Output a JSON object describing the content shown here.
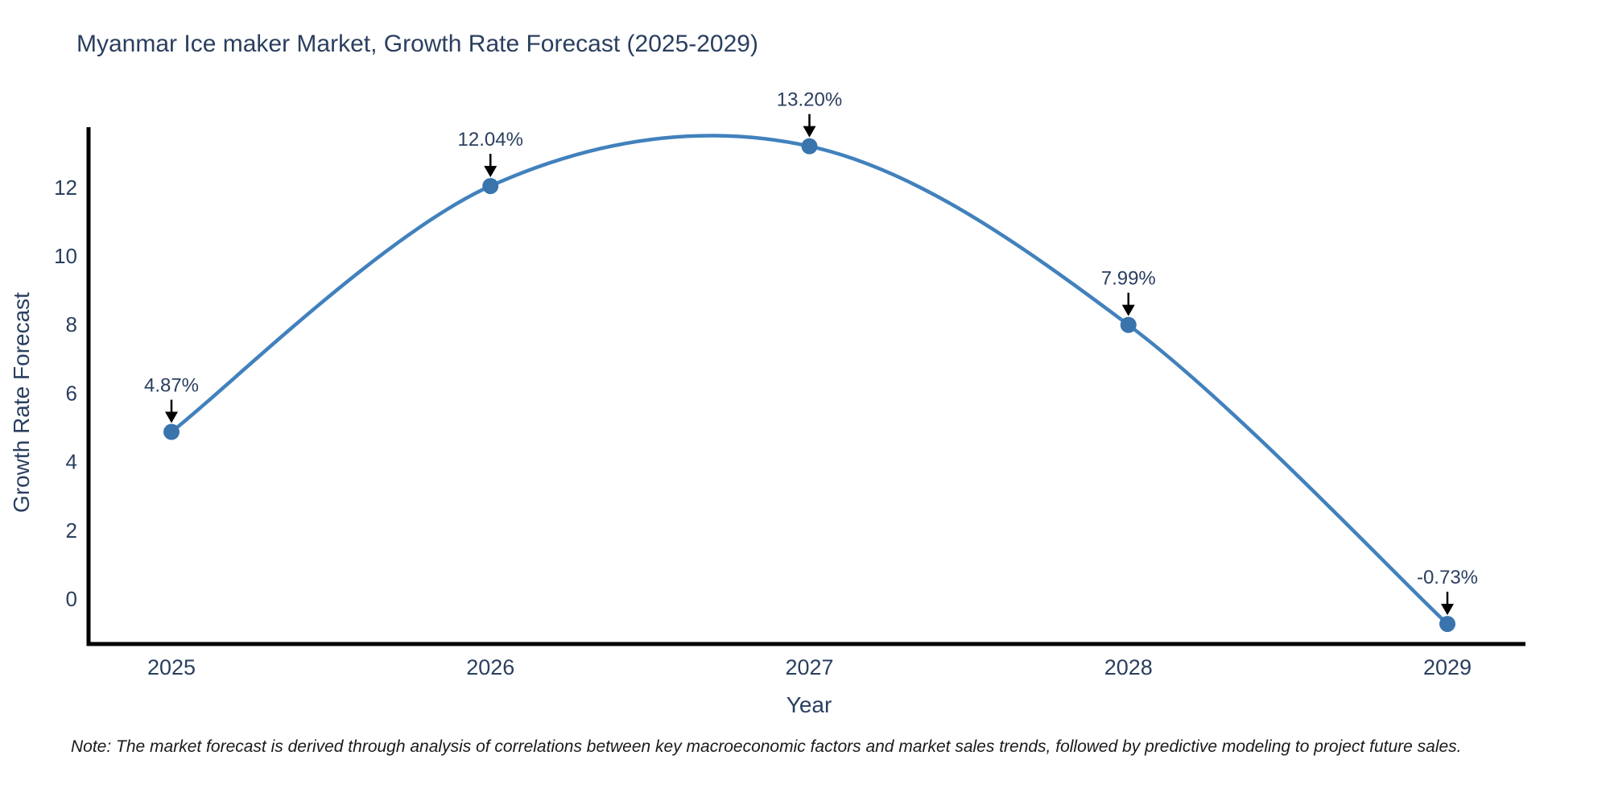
{
  "title": "Myanmar Ice maker Market, Growth Rate Forecast (2025-2029)",
  "note": "Note: The market forecast is derived through analysis of correlations between key macroeconomic factors and market sales trends, followed by predictive modeling to project future sales.",
  "colors": {
    "line": "#4181bd",
    "marker": "#3a74ad",
    "axis": "#000000",
    "text": "#2a3f5f",
    "annotation_arrow": "#000000",
    "background": "#ffffff"
  },
  "chart_data": {
    "type": "line",
    "title": "Myanmar Ice maker Market, Growth Rate Forecast (2025-2029)",
    "xlabel": "Year",
    "ylabel": "Growth Rate Forecast",
    "x": [
      2025,
      2026,
      2027,
      2028,
      2029
    ],
    "series": [
      {
        "name": "Growth Rate Forecast",
        "values": [
          4.87,
          12.04,
          13.2,
          7.99,
          -0.73
        ]
      }
    ],
    "point_labels": [
      "4.87%",
      "12.04%",
      "13.20%",
      "7.99%",
      "-0.73%"
    ],
    "yticks": [
      0,
      2,
      4,
      6,
      8,
      10,
      12
    ],
    "ylim": [
      -1.3,
      13.8
    ],
    "line_shape": "spline",
    "grid": false,
    "legend_position": "none"
  }
}
